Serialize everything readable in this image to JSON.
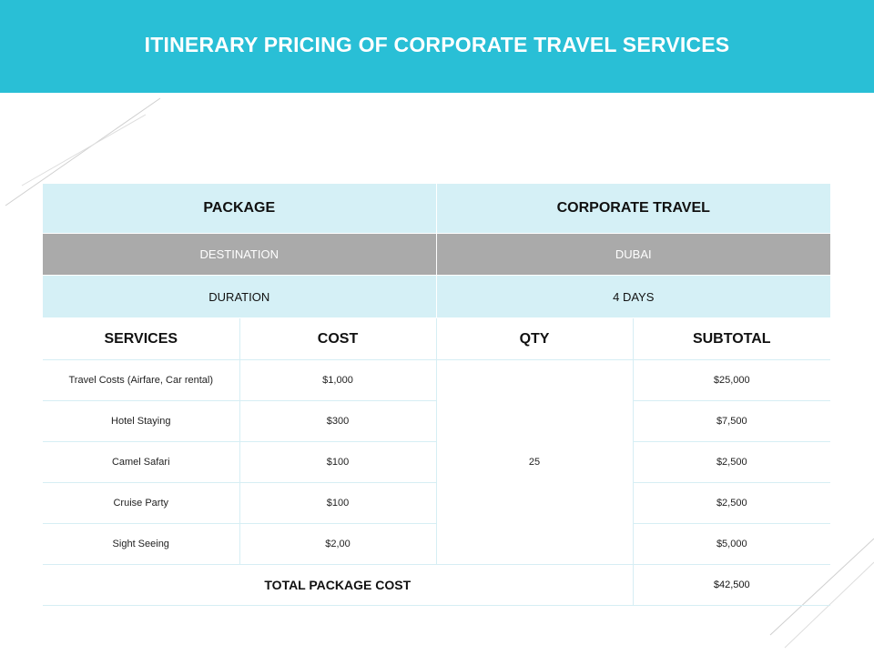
{
  "title": "ITINERARY PRICING OF CORPORATE TRAVEL SERVICES",
  "colors": {
    "header": "#29bfd6",
    "light_row": "#d5f0f6",
    "gray_row": "#aaaaaa"
  },
  "package": {
    "label": "PACKAGE",
    "value": "CORPORATE TRAVEL"
  },
  "destination": {
    "label": "DESTINATION",
    "value": "DUBAI"
  },
  "duration": {
    "label": "DURATION",
    "value": "4 DAYS"
  },
  "columns": [
    "SERVICES",
    "COST",
    "QTY",
    "SUBTOTAL"
  ],
  "qty": "25",
  "rows": [
    {
      "service": "Travel Costs (Airfare, Car rental)",
      "cost": "$1,000",
      "subtotal": "$25,000"
    },
    {
      "service": "Hotel Staying",
      "cost": "$300",
      "subtotal": "$7,500"
    },
    {
      "service": "Camel Safari",
      "cost": "$100",
      "subtotal": "$2,500"
    },
    {
      "service": "Cruise Party",
      "cost": "$100",
      "subtotal": "$2,500"
    },
    {
      "service": "Sight Seeing",
      "cost": "$2,00",
      "subtotal": "$5,000"
    }
  ],
  "total": {
    "label": "TOTAL PACKAGE COST",
    "value": "$42,500"
  }
}
